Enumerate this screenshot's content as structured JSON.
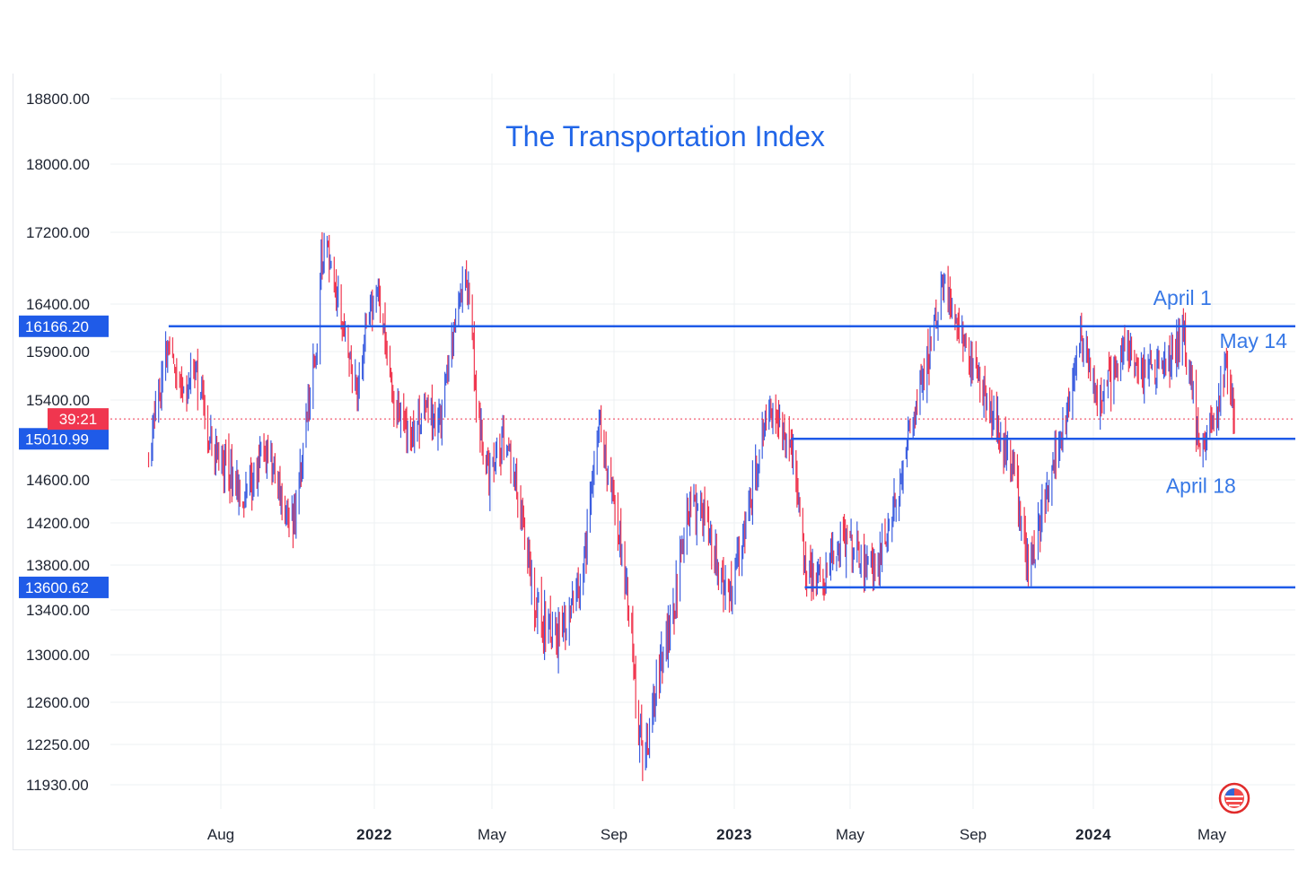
{
  "chart_data": {
    "type": "candlestick",
    "title": "The Transportation Index",
    "ylim": [
      11850,
      19000
    ],
    "y_ticks": [
      11930,
      12250,
      12600,
      13000,
      13400,
      13800,
      14200,
      14600,
      15400,
      15900,
      16400,
      17200,
      18000,
      18800
    ],
    "y_tick_labels": [
      "11930.00",
      "12250.00",
      "12600.00",
      "13000.00",
      "13400.00",
      "13800.00",
      "14200.00",
      "14600.00",
      "15400.00",
      "15900.00",
      "16400.00",
      "17200.00",
      "18000.00",
      "18800.00"
    ],
    "x_range": [
      "2021-05-15",
      "2024-06-20"
    ],
    "x_ticks": [
      {
        "date": "2021-08-01",
        "label": "Aug",
        "bold": false
      },
      {
        "date": "2022-01-01",
        "label": "2022",
        "bold": true
      },
      {
        "date": "2022-05-01",
        "label": "May",
        "bold": false
      },
      {
        "date": "2022-09-01",
        "label": "Sep",
        "bold": false
      },
      {
        "date": "2023-01-01",
        "label": "2023",
        "bold": true
      },
      {
        "date": "2023-05-01",
        "label": "May",
        "bold": false
      },
      {
        "date": "2023-09-01",
        "label": "Sep",
        "bold": false
      },
      {
        "date": "2024-01-01",
        "label": "2024",
        "bold": true
      },
      {
        "date": "2024-05-01",
        "label": "May",
        "bold": false
      }
    ],
    "grid": true,
    "price_path": [
      [
        "2021-05-20",
        14900
      ],
      [
        "2021-06-05",
        15700
      ],
      [
        "2021-06-10",
        16000
      ],
      [
        "2021-06-25",
        15500
      ],
      [
        "2021-07-05",
        15750
      ],
      [
        "2021-07-25",
        14900
      ],
      [
        "2021-08-10",
        14700
      ],
      [
        "2021-08-25",
        14350
      ],
      [
        "2021-09-10",
        14950
      ],
      [
        "2021-09-25",
        14700
      ],
      [
        "2021-10-10",
        14150
      ],
      [
        "2021-10-20",
        14700
      ],
      [
        "2021-11-01",
        15700
      ],
      [
        "2021-11-05",
        16000
      ],
      [
        "2021-11-09",
        17000
      ],
      [
        "2021-11-20",
        16850
      ],
      [
        "2021-12-01",
        16100
      ],
      [
        "2021-12-15",
        15500
      ],
      [
        "2021-12-25",
        16350
      ],
      [
        "2022-01-05",
        16500
      ],
      [
        "2022-01-20",
        15350
      ],
      [
        "2022-02-05",
        15000
      ],
      [
        "2022-02-25",
        15300
      ],
      [
        "2022-03-10",
        15100
      ],
      [
        "2022-03-20",
        15900
      ],
      [
        "2022-04-01",
        16600
      ],
      [
        "2022-04-08",
        16550
      ],
      [
        "2022-04-15",
        15350
      ],
      [
        "2022-04-28",
        14600
      ],
      [
        "2022-05-15",
        15000
      ],
      [
        "2022-06-01",
        14250
      ],
      [
        "2022-06-15",
        13400
      ],
      [
        "2022-07-01",
        13150
      ],
      [
        "2022-07-15",
        13250
      ],
      [
        "2022-08-01",
        13750
      ],
      [
        "2022-08-18",
        15150
      ],
      [
        "2022-09-01",
        14350
      ],
      [
        "2022-09-15",
        13500
      ],
      [
        "2022-09-25",
        12500
      ],
      [
        "2022-10-01",
        12000
      ],
      [
        "2022-10-15",
        12800
      ],
      [
        "2022-11-01",
        13400
      ],
      [
        "2022-11-15",
        14300
      ],
      [
        "2022-12-01",
        14300
      ],
      [
        "2022-12-15",
        13800
      ],
      [
        "2022-12-28",
        13500
      ],
      [
        "2023-01-15",
        14300
      ],
      [
        "2023-01-28",
        14950
      ],
      [
        "2023-02-05",
        15400
      ],
      [
        "2023-02-20",
        15000
      ],
      [
        "2023-03-05",
        14750
      ],
      [
        "2023-03-15",
        13750
      ],
      [
        "2023-04-01",
        13650
      ],
      [
        "2023-04-20",
        14000
      ],
      [
        "2023-05-05",
        13950
      ],
      [
        "2023-05-25",
        13750
      ],
      [
        "2023-06-10",
        14200
      ],
      [
        "2023-06-25",
        14850
      ],
      [
        "2023-07-10",
        15500
      ],
      [
        "2023-07-25",
        16150
      ],
      [
        "2023-08-01",
        16550
      ],
      [
        "2023-08-15",
        16300
      ],
      [
        "2023-09-01",
        15700
      ],
      [
        "2023-09-15",
        15400
      ],
      [
        "2023-10-01",
        15000
      ],
      [
        "2023-10-15",
        14600
      ],
      [
        "2023-10-27",
        13750
      ],
      [
        "2023-11-05",
        14050
      ],
      [
        "2023-11-20",
        14700
      ],
      [
        "2023-12-05",
        15300
      ],
      [
        "2023-12-20",
        16050
      ],
      [
        "2024-01-05",
        15400
      ],
      [
        "2024-01-20",
        15600
      ],
      [
        "2024-02-05",
        15950
      ],
      [
        "2024-02-20",
        15650
      ],
      [
        "2024-03-05",
        15700
      ],
      [
        "2024-03-20",
        15800
      ],
      [
        "2024-04-01",
        16150
      ],
      [
        "2024-04-10",
        15600
      ],
      [
        "2024-04-18",
        14900
      ],
      [
        "2024-04-26",
        15100
      ],
      [
        "2024-05-05",
        15200
      ],
      [
        "2024-05-14",
        15750
      ],
      [
        "2024-05-24",
        15210
      ]
    ],
    "horizontal_levels": [
      {
        "value": 16166.2,
        "label": "16166.20",
        "from": "2021-06-10"
      },
      {
        "value": 15010.99,
        "label": "15010.99",
        "from": "2023-03-01"
      },
      {
        "value": 13600.62,
        "label": "13600.62",
        "from": "2023-03-15"
      }
    ],
    "last_price_value": 15210,
    "last_price_tag": "39:21",
    "annotations": [
      {
        "text": "April 1",
        "date": "2024-04-01",
        "value": 16166
      },
      {
        "text": "May 14",
        "date": "2024-05-14",
        "value": 15750
      },
      {
        "text": "April 18",
        "date": "2024-04-18",
        "value": 14900
      }
    ],
    "colors": {
      "up": "#3d5fe0",
      "down": "#f0364f",
      "level_line": "#1f5be8",
      "title": "#2166e8",
      "annotation": "#3778e6",
      "last_price": "#f0364f",
      "grid": "#eef0f3"
    }
  },
  "watermark_icon": "flag-globe-icon"
}
